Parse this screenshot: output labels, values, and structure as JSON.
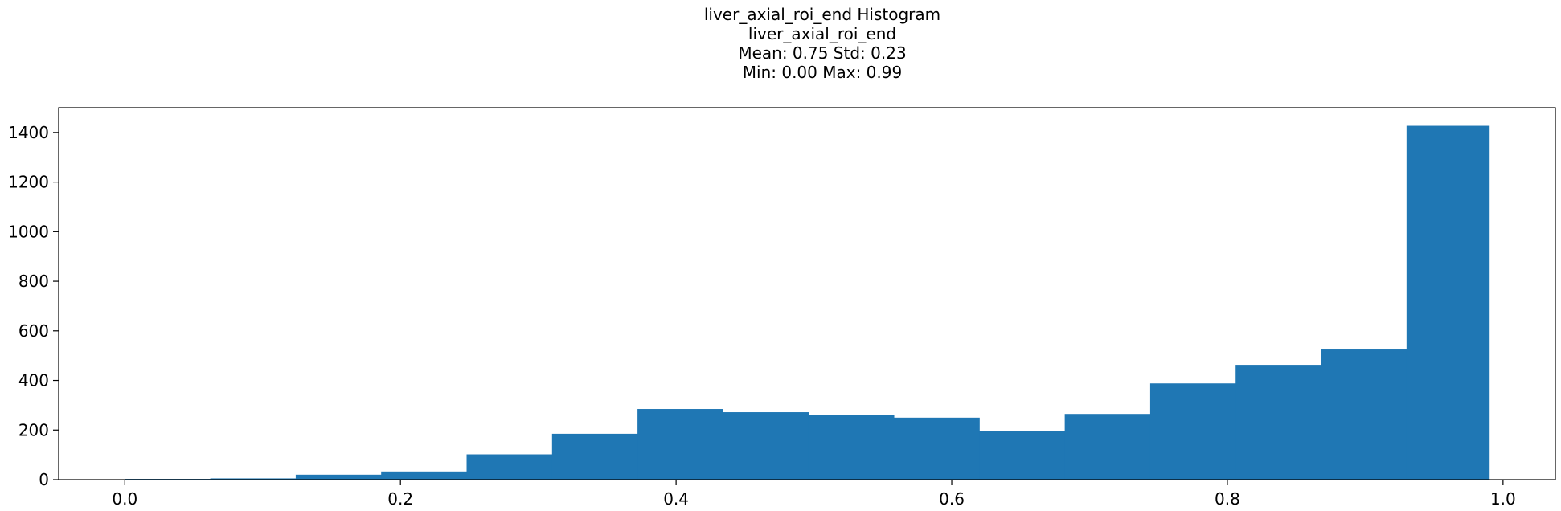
{
  "chart_data": {
    "type": "bar",
    "title": "liver_axial_roi_end Histogram",
    "subtitle_lines": [
      "liver_axial_roi_end",
      "Mean: 0.75 Std: 0.23",
      "Min: 0.00 Max: 0.99"
    ],
    "xlabel": "",
    "ylabel": "",
    "bin_edges": [
      0.0,
      0.062,
      0.124,
      0.186,
      0.248,
      0.31,
      0.372,
      0.434,
      0.496,
      0.558,
      0.62,
      0.682,
      0.744,
      0.806,
      0.868,
      0.93,
      0.99
    ],
    "values": [
      3,
      5,
      20,
      33,
      102,
      185,
      285,
      272,
      262,
      250,
      197,
      265,
      388,
      463,
      528,
      1427
    ],
    "xlim": [
      -0.048,
      1.038
    ],
    "ylim": [
      0,
      1500
    ],
    "xticks": [
      0.0,
      0.2,
      0.4,
      0.6,
      0.8,
      1.0
    ],
    "xtick_labels": [
      "0.0",
      "0.2",
      "0.4",
      "0.6",
      "0.8",
      "1.0"
    ],
    "yticks": [
      0,
      200,
      400,
      600,
      800,
      1000,
      1200,
      1400
    ],
    "ytick_labels": [
      "0",
      "200",
      "400",
      "600",
      "800",
      "1000",
      "1200",
      "1400"
    ],
    "bar_color": "#1f77b4",
    "grid": false,
    "legend": "none"
  }
}
